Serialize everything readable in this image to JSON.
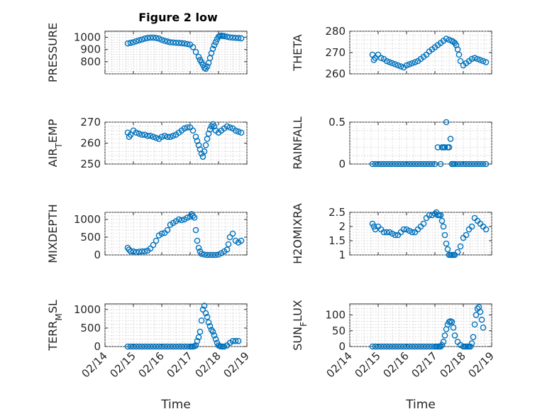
{
  "title": "Figure 2 low",
  "chart_data": [
    {
      "type": "scatter",
      "ylabel": "PRESSURE",
      "ylim": [
        700,
        1050
      ],
      "yticks": [
        800,
        900,
        1000
      ],
      "ytick_labels": [
        "800",
        "900",
        "1000"
      ],
      "xlim": [
        0,
        5
      ],
      "xticks": [
        0,
        1,
        2,
        3,
        4,
        5
      ],
      "show_xtick_labels": false,
      "title": "Figure 2 low",
      "xlabel": "",
      "grid": true,
      "x": [
        0.8,
        0.9,
        1,
        1.1,
        1.2,
        1.3,
        1.4,
        1.5,
        1.6,
        1.7,
        1.8,
        1.9,
        2,
        2.1,
        2.2,
        2.3,
        2.4,
        2.5,
        2.6,
        2.7,
        2.8,
        2.9,
        3,
        3.1,
        3.2,
        3.3,
        3.35,
        3.4,
        3.45,
        3.5,
        3.55,
        3.6,
        3.65,
        3.7,
        3.75,
        3.8,
        3.85,
        3.9,
        3.95,
        4,
        4.05,
        4.1,
        4.15,
        4.2,
        4.3,
        4.4,
        4.5,
        4.6,
        4.7,
        4.8
      ],
      "y": [
        950,
        955,
        960,
        968,
        975,
        982,
        990,
        995,
        998,
        998,
        995,
        990,
        980,
        972,
        966,
        960,
        958,
        956,
        954,
        952,
        950,
        945,
        940,
        920,
        880,
        840,
        815,
        795,
        775,
        750,
        742,
        760,
        790,
        830,
        870,
        905,
        935,
        960,
        985,
        1005,
        1012,
        1014,
        1012,
        1010,
        1005,
        1000,
        998,
        996,
        994,
        992
      ]
    },
    {
      "type": "scatter",
      "ylabel": "THETA",
      "ylim": [
        260,
        280
      ],
      "yticks": [
        260,
        270,
        280
      ],
      "ytick_labels": [
        "260",
        "270",
        "280"
      ],
      "xlim": [
        0,
        5
      ],
      "xticks": [
        0,
        1,
        2,
        3,
        4,
        5
      ],
      "show_xtick_labels": false,
      "xlabel": "",
      "grid": true,
      "x": [
        0.8,
        0.85,
        0.9,
        1,
        1.1,
        1.2,
        1.3,
        1.4,
        1.5,
        1.6,
        1.7,
        1.8,
        1.9,
        2,
        2.1,
        2.2,
        2.3,
        2.4,
        2.5,
        2.6,
        2.7,
        2.8,
        2.9,
        3,
        3.1,
        3.2,
        3.3,
        3.4,
        3.5,
        3.6,
        3.65,
        3.7,
        3.75,
        3.8,
        3.85,
        3.9,
        4,
        4.1,
        4.2,
        4.3,
        4.4,
        4.5,
        4.6,
        4.7,
        4.8
      ],
      "y": [
        269,
        266.5,
        267.5,
        269,
        267.5,
        267,
        266,
        265.5,
        265,
        264.5,
        264,
        263.5,
        263,
        264,
        264.5,
        265,
        265.5,
        266,
        267,
        268,
        269,
        270.5,
        271.5,
        272.5,
        273.5,
        274.5,
        275.5,
        276.5,
        276,
        275.5,
        275,
        274.5,
        273.5,
        271.5,
        269,
        266,
        264,
        265,
        266,
        267,
        267.5,
        267,
        266.5,
        266,
        265.5
      ]
    },
    {
      "type": "scatter",
      "ylabel": "AIR_TEMP",
      "ylim": [
        250,
        270
      ],
      "yticks": [
        250,
        260,
        270
      ],
      "ytick_labels": [
        "250",
        "260",
        "270"
      ],
      "xlim": [
        0,
        5
      ],
      "xticks": [
        0,
        1,
        2,
        3,
        4,
        5
      ],
      "show_xtick_labels": false,
      "xlabel": "",
      "grid": true,
      "x": [
        0.8,
        0.85,
        0.9,
        1,
        1.1,
        1.2,
        1.3,
        1.4,
        1.5,
        1.6,
        1.7,
        1.8,
        1.9,
        2,
        2.1,
        2.2,
        2.3,
        2.4,
        2.5,
        2.6,
        2.7,
        2.8,
        2.9,
        3,
        3.1,
        3.2,
        3.25,
        3.3,
        3.35,
        3.4,
        3.45,
        3.5,
        3.55,
        3.6,
        3.65,
        3.7,
        3.75,
        3.8,
        3.85,
        3.9,
        4,
        4.1,
        4.2,
        4.3,
        4.4,
        4.5,
        4.6,
        4.7,
        4.8
      ],
      "y": [
        265,
        263,
        264,
        266,
        265,
        264.5,
        264,
        264,
        263.5,
        263.5,
        263,
        262.5,
        262,
        263,
        263.5,
        263,
        263,
        263.5,
        264,
        265,
        266,
        267,
        267.5,
        267.5,
        266,
        263,
        261,
        259,
        257,
        255,
        253.5,
        256,
        259,
        262,
        264.5,
        266.5,
        268,
        269,
        268,
        266,
        265,
        266,
        267,
        268,
        267.5,
        267,
        266,
        265.5,
        265
      ]
    },
    {
      "type": "scatter",
      "ylabel": "RAINFALL",
      "ylim": [
        0,
        0.5
      ],
      "yticks": [
        0,
        0.5
      ],
      "ytick_labels": [
        "0",
        "0.5"
      ],
      "xlim": [
        0,
        5
      ],
      "xticks": [
        0,
        1,
        2,
        3,
        4,
        5
      ],
      "show_xtick_labels": false,
      "xlabel": "",
      "grid": true,
      "x": [
        0.8,
        0.9,
        1,
        1.1,
        1.2,
        1.3,
        1.4,
        1.5,
        1.6,
        1.7,
        1.8,
        1.9,
        2,
        2.1,
        2.2,
        2.3,
        2.4,
        2.5,
        2.6,
        2.7,
        2.8,
        2.9,
        3,
        3.1,
        3.2,
        3.25,
        3.3,
        3.35,
        3.4,
        3.45,
        3.5,
        3.55,
        3.6,
        3.65,
        3.7,
        3.8,
        3.9,
        4,
        4.1,
        4.2,
        4.3,
        4.4,
        4.5,
        4.6,
        4.7,
        4.8
      ],
      "y": [
        0,
        0,
        0,
        0,
        0,
        0,
        0,
        0,
        0,
        0,
        0,
        0,
        0,
        0,
        0,
        0,
        0,
        0,
        0,
        0,
        0,
        0,
        0,
        0.2,
        0,
        0.2,
        0.2,
        0.2,
        0.5,
        0.2,
        0.2,
        0.3,
        0,
        0,
        0,
        0,
        0,
        0,
        0,
        0,
        0,
        0,
        0,
        0,
        0,
        0
      ]
    },
    {
      "type": "scatter",
      "ylabel": "MIXDEPTH",
      "ylim": [
        0,
        1200
      ],
      "yticks": [
        0,
        500,
        1000
      ],
      "ytick_labels": [
        "0",
        "500",
        "1000"
      ],
      "xlim": [
        0,
        5
      ],
      "xticks": [
        0,
        1,
        2,
        3,
        4,
        5
      ],
      "show_xtick_labels": false,
      "xlabel": "",
      "grid": true,
      "x": [
        0.8,
        0.85,
        0.9,
        1,
        1.1,
        1.2,
        1.3,
        1.4,
        1.5,
        1.6,
        1.7,
        1.8,
        1.9,
        2,
        2.1,
        2.2,
        2.3,
        2.4,
        2.5,
        2.6,
        2.7,
        2.8,
        2.9,
        3,
        3.05,
        3.1,
        3.15,
        3.2,
        3.25,
        3.3,
        3.35,
        3.4,
        3.5,
        3.6,
        3.7,
        3.8,
        3.9,
        4,
        4.1,
        4.2,
        4.3,
        4.35,
        4.4,
        4.5,
        4.6,
        4.7,
        4.8
      ],
      "y": [
        200,
        150,
        100,
        100,
        80,
        90,
        100,
        100,
        120,
        180,
        280,
        400,
        550,
        600,
        620,
        700,
        850,
        900,
        950,
        1000,
        980,
        1000,
        1050,
        1080,
        1150,
        1100,
        1050,
        700,
        400,
        200,
        100,
        30,
        10,
        0,
        0,
        0,
        0,
        10,
        50,
        100,
        150,
        300,
        500,
        600,
        400,
        350,
        400
      ]
    },
    {
      "type": "scatter",
      "ylabel": "H2OMIXRA",
      "ylim": [
        1,
        2.5
      ],
      "yticks": [
        1,
        1.5,
        2,
        2.5
      ],
      "ytick_labels": [
        "1",
        "1.5",
        "2",
        "2.5"
      ],
      "xlim": [
        0,
        5
      ],
      "xticks": [
        0,
        1,
        2,
        3,
        4,
        5
      ],
      "show_xtick_labels": false,
      "xlabel": "",
      "grid": true,
      "x": [
        0.8,
        0.85,
        0.9,
        1,
        1.1,
        1.2,
        1.3,
        1.4,
        1.5,
        1.6,
        1.7,
        1.8,
        1.9,
        2,
        2.1,
        2.2,
        2.3,
        2.4,
        2.5,
        2.6,
        2.7,
        2.8,
        2.9,
        3,
        3.05,
        3.1,
        3.15,
        3.2,
        3.25,
        3.3,
        3.35,
        3.4,
        3.45,
        3.5,
        3.55,
        3.6,
        3.65,
        3.7,
        3.8,
        3.9,
        4,
        4.1,
        4.2,
        4.3,
        4.4,
        4.5,
        4.6,
        4.7,
        4.8
      ],
      "y": [
        2.1,
        2.0,
        1.9,
        2.0,
        1.9,
        1.8,
        1.8,
        1.8,
        1.75,
        1.7,
        1.7,
        1.8,
        1.9,
        1.9,
        1.85,
        1.8,
        1.8,
        1.9,
        2.0,
        2.1,
        2.3,
        2.4,
        2.4,
        2.45,
        2.5,
        2.4,
        2.4,
        2.4,
        2.2,
        2.0,
        1.7,
        1.4,
        1.2,
        1.0,
        1.0,
        1.0,
        1.0,
        1.0,
        1.1,
        1.3,
        1.6,
        1.7,
        1.9,
        2.0,
        2.3,
        2.2,
        2.1,
        2.0,
        1.9
      ]
    },
    {
      "type": "scatter",
      "ylabel": "TERR_MSL",
      "ylim": [
        0,
        1150
      ],
      "yticks": [
        0,
        500,
        1000
      ],
      "ytick_labels": [
        "0",
        "500",
        "1000"
      ],
      "xlim": [
        0,
        5
      ],
      "xticks": [
        0,
        1,
        2,
        3,
        4,
        5
      ],
      "xtick_labels": [
        "02/14",
        "02/15",
        "02/16",
        "02/17",
        "02/18",
        "02/19"
      ],
      "show_xtick_labels": true,
      "xlabel": "Time",
      "grid": true,
      "x": [
        0.8,
        0.9,
        1,
        1.1,
        1.2,
        1.3,
        1.4,
        1.5,
        1.6,
        1.7,
        1.8,
        1.9,
        2,
        2.1,
        2.2,
        2.3,
        2.4,
        2.5,
        2.6,
        2.7,
        2.8,
        2.9,
        3,
        3.05,
        3.1,
        3.15,
        3.2,
        3.25,
        3.3,
        3.35,
        3.4,
        3.45,
        3.5,
        3.55,
        3.6,
        3.65,
        3.7,
        3.75,
        3.8,
        3.85,
        3.9,
        3.95,
        4,
        4.05,
        4.1,
        4.15,
        4.2,
        4.3,
        4.4,
        4.5,
        4.6,
        4.7
      ],
      "y": [
        0,
        0,
        0,
        0,
        0,
        0,
        0,
        0,
        0,
        0,
        0,
        0,
        0,
        0,
        0,
        0,
        0,
        0,
        0,
        0,
        0,
        0,
        0,
        0,
        0,
        10,
        30,
        150,
        250,
        400,
        700,
        1000,
        1100,
        900,
        800,
        650,
        550,
        450,
        400,
        300,
        200,
        100,
        30,
        10,
        0,
        0,
        0,
        30,
        100,
        150,
        150,
        150
      ]
    },
    {
      "type": "scatter",
      "ylabel": "SUN_FLUX",
      "ylim": [
        0,
        135
      ],
      "yticks": [
        0,
        50,
        100
      ],
      "ytick_labels": [
        "0",
        "50",
        "100"
      ],
      "xlim": [
        0,
        5
      ],
      "xticks": [
        0,
        1,
        2,
        3,
        4,
        5
      ],
      "xtick_labels": [
        "02/14",
        "02/15",
        "02/16",
        "02/17",
        "02/18",
        "02/19"
      ],
      "show_xtick_labels": true,
      "xlabel": "Time",
      "grid": true,
      "x": [
        0.8,
        0.9,
        1,
        1.1,
        1.2,
        1.3,
        1.4,
        1.5,
        1.6,
        1.7,
        1.8,
        1.9,
        2,
        2.1,
        2.2,
        2.3,
        2.4,
        2.5,
        2.6,
        2.7,
        2.8,
        2.9,
        3,
        3.05,
        3.1,
        3.15,
        3.2,
        3.25,
        3.3,
        3.35,
        3.4,
        3.45,
        3.5,
        3.55,
        3.6,
        3.65,
        3.7,
        3.8,
        3.9,
        4,
        4.05,
        4.1,
        4.15,
        4.2,
        4.25,
        4.3,
        4.35,
        4.4,
        4.45,
        4.5,
        4.55,
        4.6,
        4.65,
        4.7
      ],
      "y": [
        0,
        0,
        0,
        0,
        0,
        0,
        0,
        0,
        0,
        0,
        0,
        0,
        0,
        0,
        0,
        0,
        0,
        0,
        0,
        0,
        0,
        0,
        0,
        0,
        0,
        0,
        0,
        5,
        15,
        35,
        55,
        70,
        78,
        80,
        78,
        60,
        35,
        15,
        5,
        0,
        0,
        0,
        0,
        0,
        0,
        10,
        30,
        70,
        100,
        120,
        125,
        110,
        85,
        60
      ]
    }
  ]
}
